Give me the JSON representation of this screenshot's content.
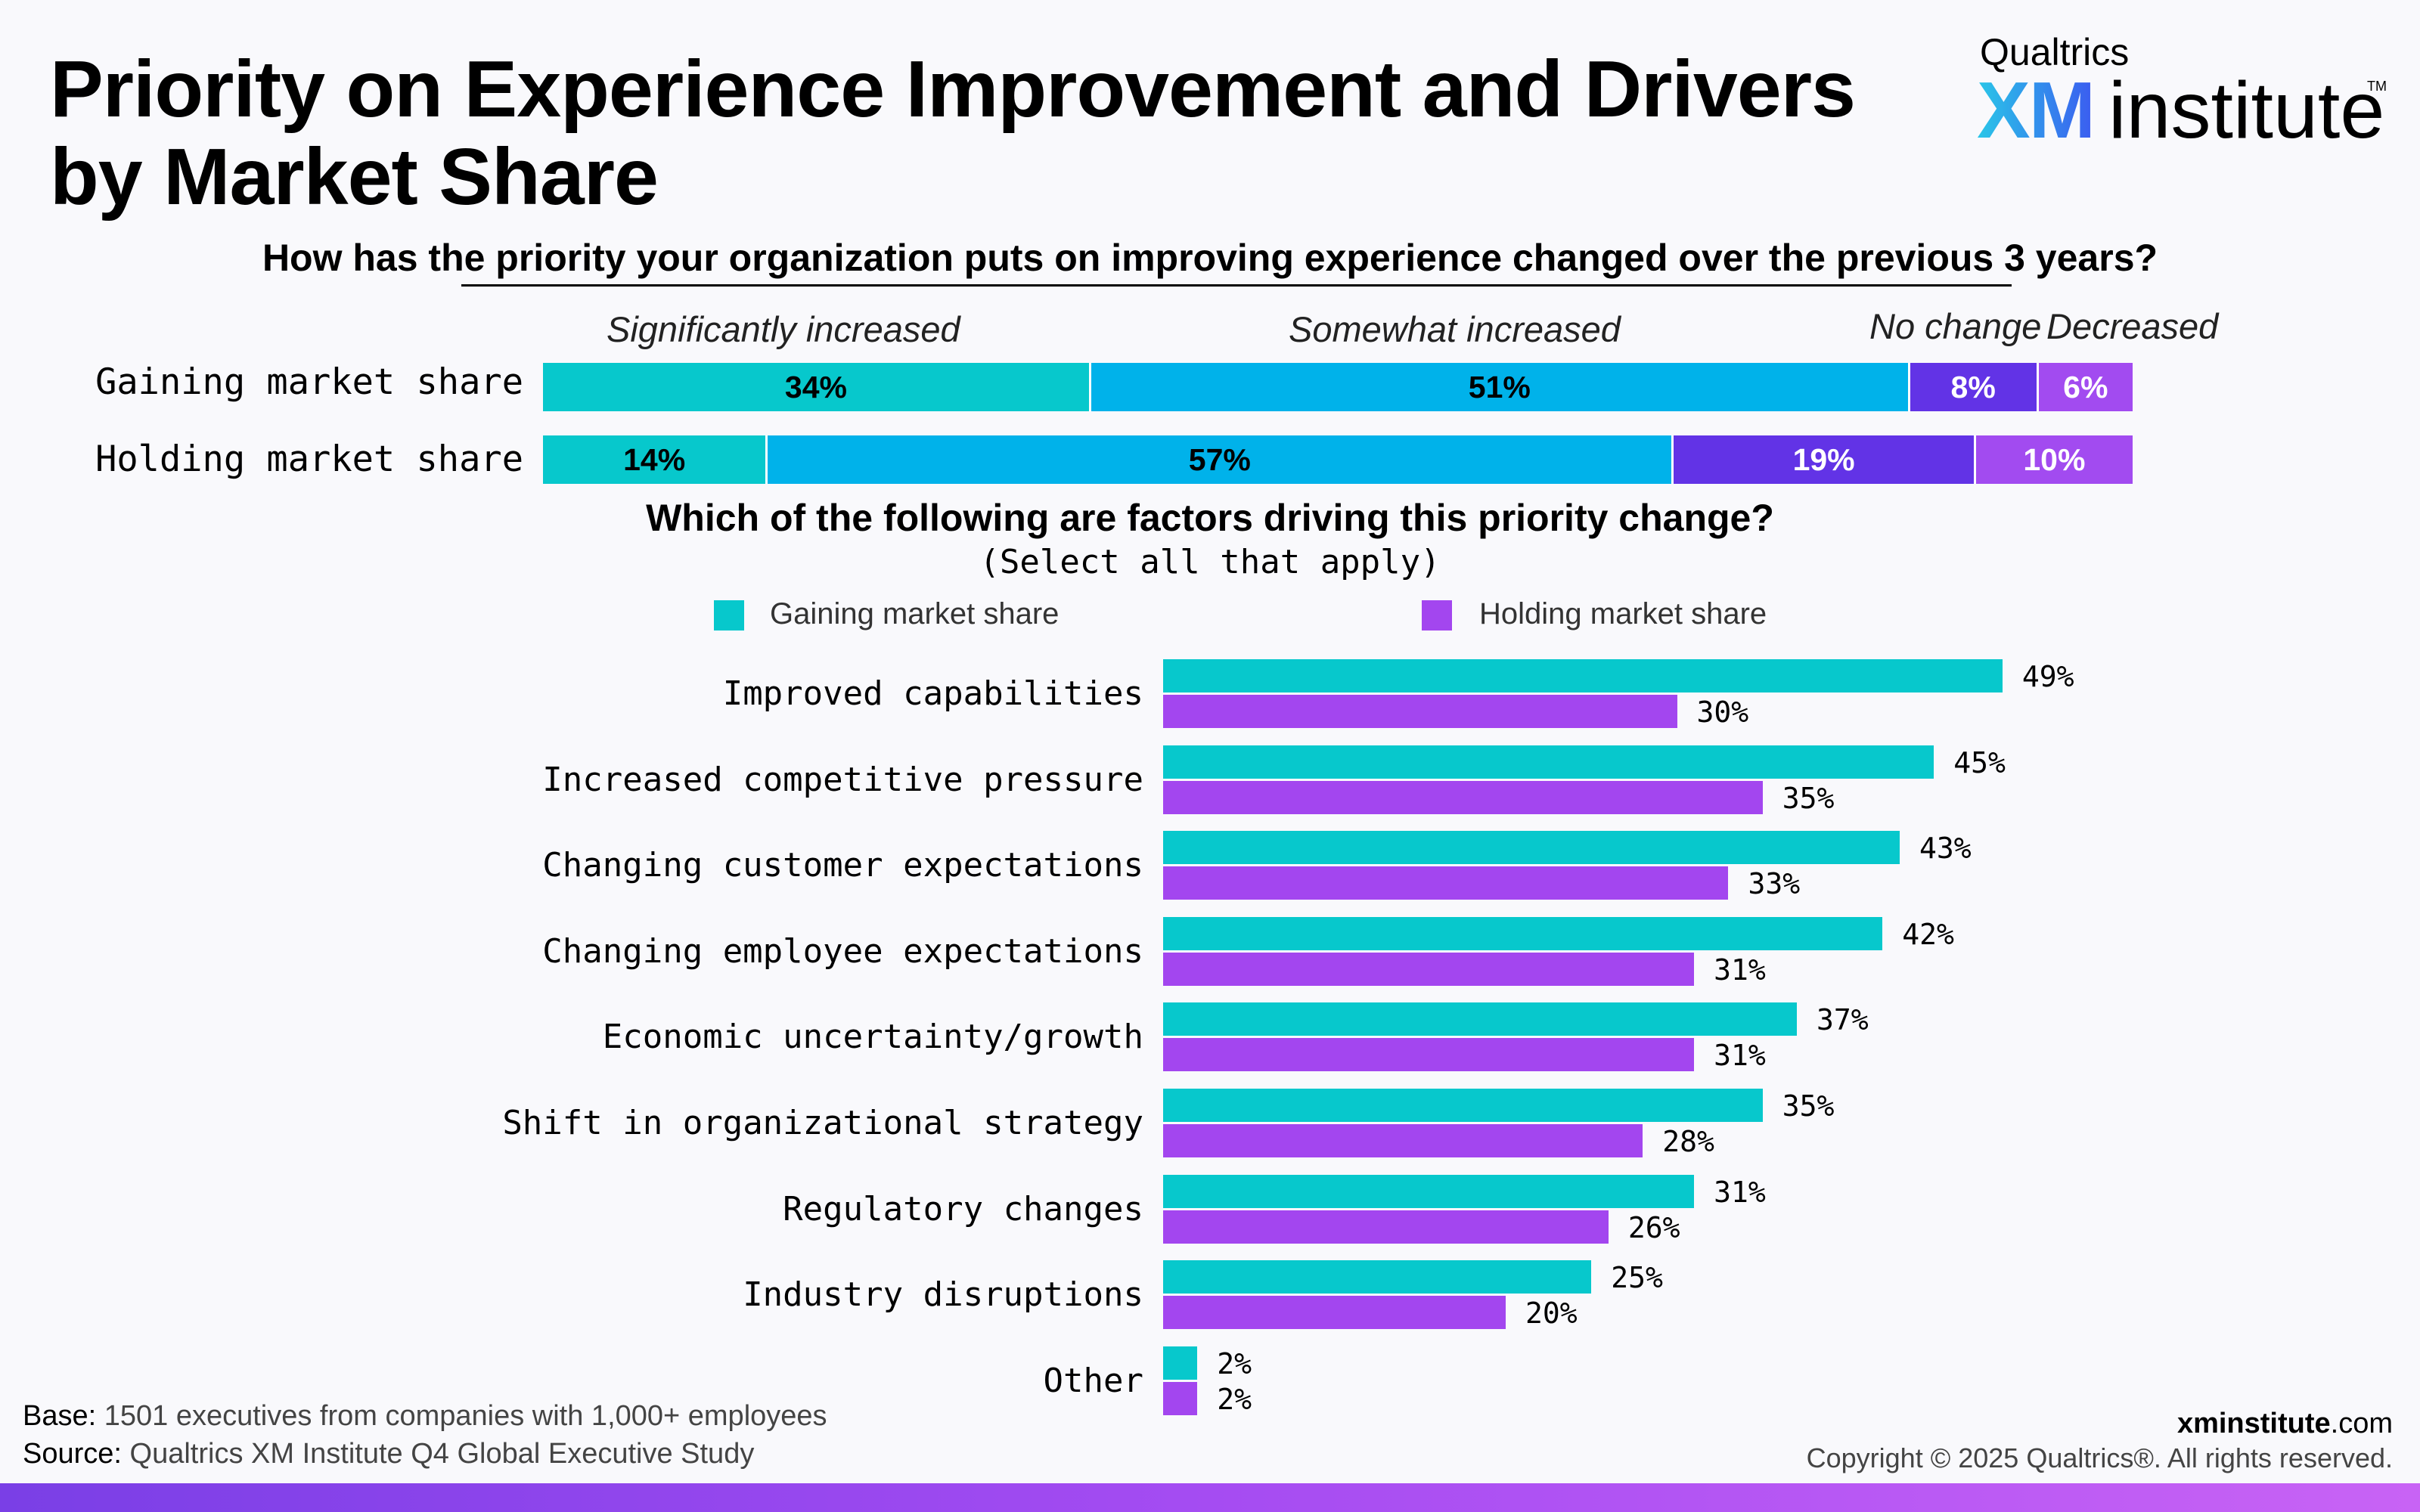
{
  "title": "Priority on Experience Improvement and Drivers by Market Share",
  "logo": {
    "small": "Qualtrics",
    "xm": "XM",
    "word": "institute",
    "tm": "TM"
  },
  "colors": {
    "teal": "#07c8cc",
    "blue": "#00b2ea",
    "purple_dark": "#6233e6",
    "purple_light": "#a24bf0",
    "holding": "#a346ef"
  },
  "chart_data": [
    {
      "type": "bar",
      "stacked": true,
      "orientation": "horizontal",
      "title": "How has the priority your organization puts on improving experience changed over the previous 3 years?",
      "categories": [
        "Gaining market share",
        "Holding market share"
      ],
      "series": [
        {
          "name": "Significantly increased",
          "values": [
            34,
            14
          ],
          "color": "#07c8cc"
        },
        {
          "name": "Somewhat increased",
          "values": [
            51,
            57
          ],
          "color": "#00b2ea"
        },
        {
          "name": "No change",
          "values": [
            8,
            19
          ],
          "color": "#6233e6"
        },
        {
          "name": "Decreased",
          "values": [
            6,
            10
          ],
          "color": "#a24bf0"
        }
      ],
      "value_labels": [
        [
          "34%",
          "51%",
          "8%",
          "6%"
        ],
        [
          "14%",
          "57%",
          "19%",
          "10%"
        ]
      ]
    },
    {
      "type": "bar",
      "orientation": "horizontal",
      "title": "Which of the following are factors driving this priority change?",
      "subtitle": "(Select all that apply)",
      "legend": "top",
      "categories": [
        "Improved capabilities",
        "Increased competitive pressure",
        "Changing customer expectations",
        "Changing employee expectations",
        "Economic uncertainty/growth",
        "Shift in organizational strategy",
        "Regulatory changes",
        "Industry disruptions",
        "Other"
      ],
      "series": [
        {
          "name": "Gaining market share",
          "values": [
            49,
            45,
            43,
            42,
            37,
            35,
            31,
            25,
            2
          ],
          "color": "#07c8cc",
          "labels": [
            "49%",
            "45%",
            "43%",
            "42%",
            "37%",
            "35%",
            "31%",
            "25%",
            "2%"
          ]
        },
        {
          "name": "Holding market share",
          "values": [
            30,
            35,
            33,
            31,
            31,
            28,
            26,
            20,
            2
          ],
          "color": "#a346ef",
          "labels": [
            "30%",
            "35%",
            "33%",
            "31%",
            "31%",
            "28%",
            "26%",
            "20%",
            "2%"
          ]
        }
      ]
    }
  ],
  "footer": {
    "base_label": "Base:",
    "base_text": " 1501 executives from companies with 1,000+ employees",
    "source_label": "Source:",
    "source_text": " Qualtrics XM Institute Q4 Global Executive Study",
    "site_bold": "xminstitute",
    "site_rest": ".com",
    "copyright": "Copyright © 2025 Qualtrics®. All rights reserved."
  }
}
